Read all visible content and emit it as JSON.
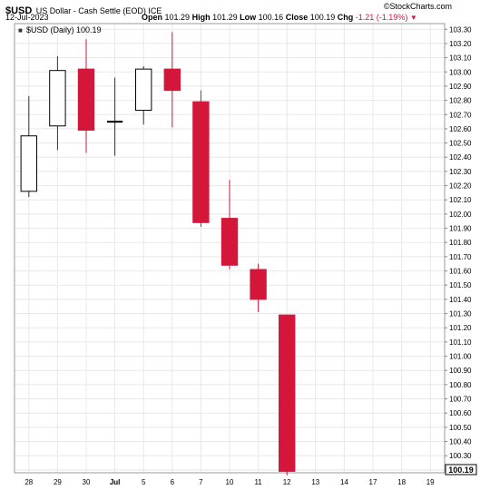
{
  "header": {
    "symbol": "$USD",
    "description": "US Dollar - Cash Settle (EOD) ICE",
    "watermark": "©StockCharts.com",
    "date": "12-Jul-2023",
    "open_label": "Open",
    "open_value": "101.29",
    "high_label": "High",
    "high_value": "101.29",
    "low_label": "Low",
    "low_value": "100.16",
    "close_label": "Close",
    "close_value": "100.19",
    "chg_label": "Chg",
    "chg_value": "-1.21 (-1.19%)",
    "chg_arrow": "▼"
  },
  "legend": {
    "marker": "■",
    "text": "$USD (Daily) 100.19"
  },
  "last_price_tag": "100.19",
  "colors": {
    "down": "#d4163a",
    "up_fill": "#ffffff",
    "wick": "#333333",
    "grid": "#e8e8e8",
    "axis": "#888888"
  },
  "chart_data": {
    "type": "candlestick",
    "ylim": [
      100.18,
      103.34
    ],
    "yticks": [
      103.3,
      103.2,
      103.1,
      103.0,
      102.9,
      102.8,
      102.7,
      102.6,
      102.5,
      102.4,
      102.3,
      102.2,
      102.1,
      102.0,
      101.9,
      101.8,
      101.7,
      101.6,
      101.5,
      101.4,
      101.3,
      101.2,
      101.1,
      101.0,
      100.9,
      100.8,
      100.7,
      100.6,
      100.5,
      100.4,
      100.3,
      100.2
    ],
    "ytick_labels": [
      "103.30",
      "103.20",
      "103.10",
      "103.00",
      "102.90",
      "102.80",
      "102.70",
      "102.60",
      "102.50",
      "102.40",
      "102.30",
      "102.20",
      "102.10",
      "102.00",
      "101.90",
      "101.80",
      "101.70",
      "101.60",
      "101.50",
      "101.40",
      "101.30",
      "101.20",
      "101.10",
      "101.00",
      "100.90",
      "100.80",
      "100.70",
      "100.60",
      "100.50",
      "100.40",
      "100.30",
      "100.20"
    ],
    "x_labels": [
      "28",
      "29",
      "30",
      "Jul",
      "5",
      "6",
      "7",
      "10",
      "11",
      "12",
      "13",
      "14",
      "17",
      "18",
      "19"
    ],
    "candles": [
      {
        "x": "28",
        "open": 102.16,
        "high": 102.83,
        "low": 102.12,
        "close": 102.55
      },
      {
        "x": "29",
        "open": 102.62,
        "high": 103.11,
        "low": 102.45,
        "close": 103.01
      },
      {
        "x": "30",
        "open": 103.02,
        "high": 103.23,
        "low": 102.43,
        "close": 102.59
      },
      {
        "x": "Jul",
        "open": 102.65,
        "high": 102.96,
        "low": 102.41,
        "close": 102.65
      },
      {
        "x": "5",
        "open": 102.73,
        "high": 103.04,
        "low": 102.63,
        "close": 103.02
      },
      {
        "x": "6",
        "open": 103.02,
        "high": 103.28,
        "low": 102.61,
        "close": 102.87
      },
      {
        "x": "7",
        "open": 102.79,
        "high": 102.87,
        "low": 101.91,
        "close": 101.94
      },
      {
        "x": "10",
        "open": 101.97,
        "high": 102.24,
        "low": 101.61,
        "close": 101.64
      },
      {
        "x": "11",
        "open": 101.61,
        "high": 101.65,
        "low": 101.31,
        "close": 101.4
      },
      {
        "x": "12",
        "open": 101.29,
        "high": 101.29,
        "low": 100.16,
        "close": 100.19
      }
    ]
  }
}
